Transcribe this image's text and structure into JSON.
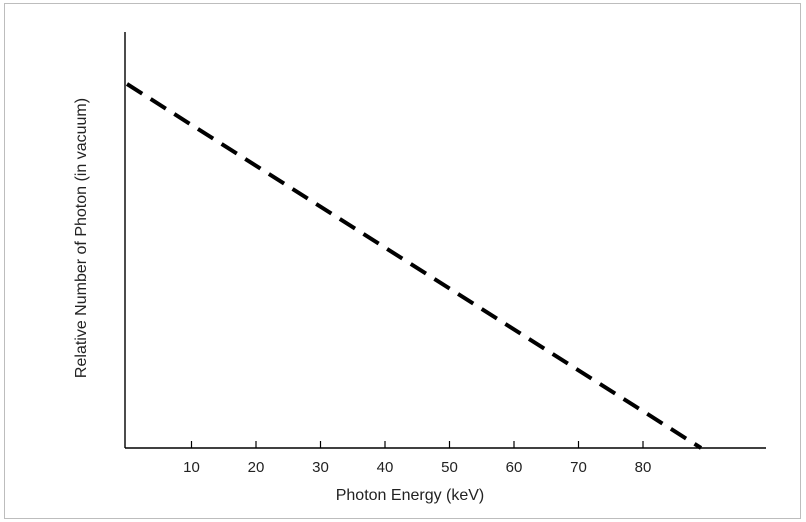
{
  "chart_data": {
    "type": "line",
    "title": "",
    "xlabel": "Photon Energy (keV)",
    "ylabel": "Relative Number of Photon (in vacuum)",
    "xlim": [
      0,
      91
    ],
    "ylim": [
      0,
      1
    ],
    "x_ticks": [
      10,
      20,
      30,
      40,
      50,
      60,
      70,
      80
    ],
    "y_ticks": [],
    "grid": false,
    "legend": "none",
    "series": [
      {
        "x": [
          0,
          89
        ],
        "y": [
          1.0,
          0.0
        ],
        "style": "dashed",
        "color": "#000000"
      }
    ]
  }
}
